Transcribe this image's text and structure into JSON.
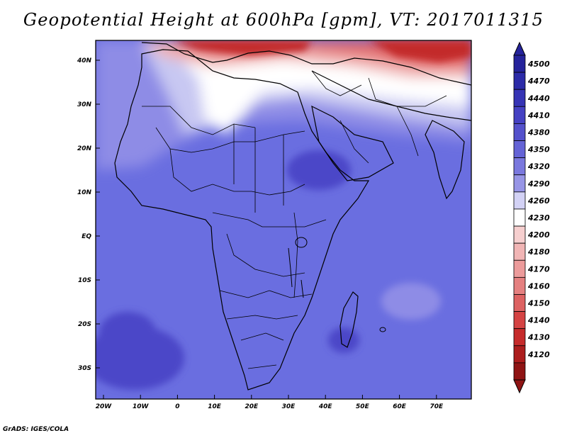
{
  "title": "Geopotential Height at 600hPa [gpm], VT: 2017011315",
  "credit": "GrADS: IGES/COLA",
  "map": {
    "lon_labels": [
      "20W",
      "10W",
      "0",
      "10E",
      "20E",
      "30E",
      "40E",
      "50E",
      "60E",
      "70E"
    ],
    "lat_labels": [
      "40N",
      "30N",
      "20N",
      "10N",
      "EQ",
      "10S",
      "20S",
      "30S"
    ],
    "field_colors": {
      "background": "#6a6ee0",
      "deep": "#4c46c8",
      "light": "#8e8ce6",
      "pale": "#c8c8f2",
      "white": "#ffffff",
      "warm_light": "#f0b0b0",
      "warm": "#e26868",
      "hot": "#c32a2a"
    }
  },
  "colorbar": {
    "levels": [
      "4500",
      "4470",
      "4440",
      "4410",
      "4380",
      "4350",
      "4320",
      "4290",
      "4260",
      "4230",
      "4200",
      "4180",
      "4170",
      "4160",
      "4150",
      "4140",
      "4130",
      "4120"
    ],
    "colors": [
      "#25239b",
      "#2c2ba8",
      "#3634b5",
      "#4541c3",
      "#5451cc",
      "#6463d6",
      "#7a78de",
      "#9795e6",
      "#d3d2f5",
      "#ffffff",
      "#f6cfcf",
      "#f1b5b5",
      "#ec9b9b",
      "#e58080",
      "#dd6262",
      "#d54343",
      "#c62b2b",
      "#ac1d1d",
      "#8f1414"
    ],
    "top_arrow_color": "#25239b",
    "bottom_arrow_color": "#8f1414"
  }
}
